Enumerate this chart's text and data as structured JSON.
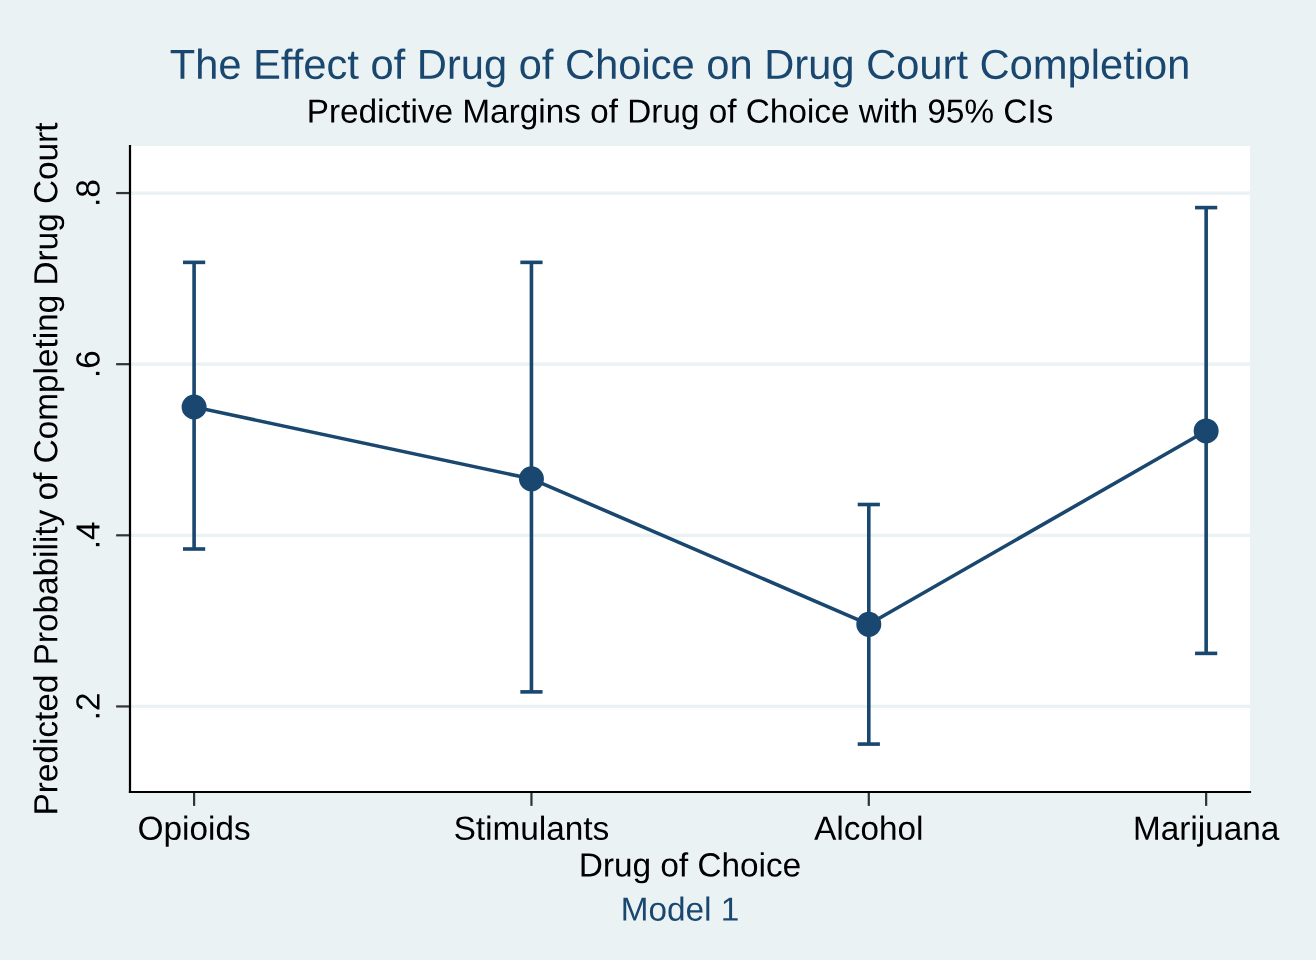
{
  "chart_data": {
    "type": "line",
    "title": "The Effect of Drug of Choice on Drug Court Completion",
    "subtitle": "Predictive Margins of Drug of Choice with 95% CIs",
    "xlabel": "Drug of Choice",
    "ylabel": "Predicted Probability of Completing Drug Court",
    "annotations": [
      "Model 1"
    ],
    "categories": [
      "Opioids",
      "Stimulants",
      "Alcohol",
      "Marijuana"
    ],
    "series": [
      {
        "color": "#1a476f",
        "values": [
          0.55,
          0.466,
          0.296,
          0.522
        ],
        "errors": [
          [
            0.384,
            0.719
          ],
          [
            0.217,
            0.719
          ],
          [
            0.156,
            0.436
          ],
          [
            0.262,
            0.783
          ]
        ]
      }
    ],
    "ylim": [
      0.1,
      0.855
    ],
    "yticks": [
      {
        "value": 0.2,
        "label": ".2"
      },
      {
        "value": 0.4,
        "label": ".4"
      },
      {
        "value": 0.6,
        "label": ".6"
      },
      {
        "value": 0.8,
        "label": ".8"
      }
    ],
    "grid": "y",
    "marker": "circle",
    "line_style": "solid"
  }
}
